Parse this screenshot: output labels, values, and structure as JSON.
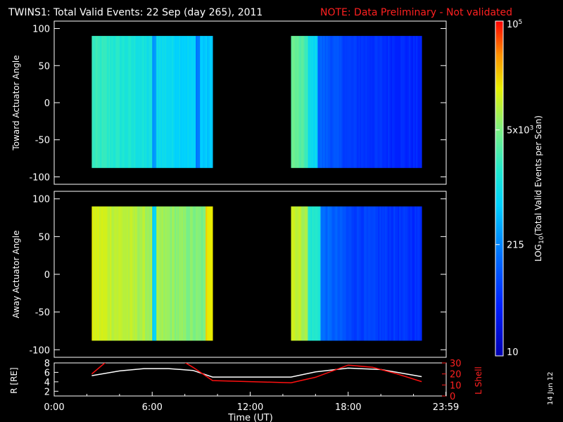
{
  "title": {
    "main": "TWINS1: Total Valid Events: 22 Sep (day 265), 2011",
    "note": "NOTE: Data Preliminary - Not validated",
    "note_color": "#ff2020"
  },
  "date_stamp": "14 Jun 12",
  "chart_data": [
    {
      "type": "heatmap",
      "name": "toward",
      "ylabel": "Toward Actuator Angle",
      "ylim": [
        -110,
        110
      ],
      "yticks": [
        100,
        50,
        0,
        -50,
        -100
      ],
      "ytick_labels": [
        "100",
        "50",
        "0",
        "-50",
        "-100"
      ],
      "xlim": [
        0,
        24
      ],
      "data_blocks": [
        {
          "t_start": 2.3,
          "t_end": 9.7,
          "angle_min": -88,
          "angle_max": 90
        },
        {
          "t_start": 14.5,
          "t_end": 22.5,
          "angle_min": -88,
          "angle_max": 90
        }
      ]
    },
    {
      "type": "heatmap",
      "name": "away",
      "ylabel": "Away Actuator Angle",
      "ylim": [
        -110,
        110
      ],
      "yticks": [
        100,
        50,
        0,
        -50,
        -100
      ],
      "ytick_labels": [
        "100",
        "50",
        "0",
        "-50",
        "-100"
      ],
      "xlim": [
        0,
        24
      ],
      "data_blocks": [
        {
          "t_start": 2.3,
          "t_end": 9.7,
          "angle_min": -88,
          "angle_max": 90
        },
        {
          "t_start": 14.5,
          "t_end": 22.5,
          "angle_min": -88,
          "angle_max": 90
        }
      ]
    },
    {
      "type": "line",
      "name": "orbit",
      "ylabel_left": "R [RE]",
      "ylabel_right": "L Shell",
      "left_ylim": [
        1,
        8
      ],
      "left_yticks": [
        "2",
        "4",
        "6",
        "8"
      ],
      "right_ylim": [
        0,
        30
      ],
      "right_yticks": [
        "0",
        "10",
        "20",
        "30"
      ],
      "xlabel": "Time (UT)",
      "xlim": [
        0,
        24
      ],
      "xtick_labels": [
        "0:00",
        "6:00",
        "12:00",
        "18:00",
        "23:59"
      ],
      "series": [
        {
          "color": "#ffffff",
          "axis": "left",
          "x": [
            2.3,
            4,
            5.5,
            7,
            8.5,
            9.7,
            12,
            14.5,
            16,
            18,
            20,
            22.5
          ],
          "y": [
            5.3,
            6.3,
            6.8,
            6.8,
            6.4,
            5.0,
            5.0,
            5.0,
            6.1,
            6.9,
            6.6,
            5.1
          ]
        },
        {
          "color": "#ff1010",
          "axis": "right",
          "x": [
            2.3,
            3.5,
            7.5,
            8.5,
            9.7,
            12,
            14.5,
            16,
            18,
            19.5,
            21,
            22.5
          ],
          "y": [
            20,
            35,
            35,
            26,
            14,
            13,
            12,
            17,
            28,
            26,
            20,
            13
          ]
        }
      ]
    }
  ],
  "colorbar": {
    "label": "LOG10(Total Valid Events per Scan)",
    "label_main": "LOG",
    "label_sub": "10",
    "label_rest": "(Total Valid Events per Scan)",
    "ticks": [
      "10",
      "215",
      "5x10",
      "10"
    ],
    "tick_sup": [
      "",
      "",
      "3",
      "5"
    ],
    "log_range": [
      1,
      5
    ],
    "tick_values": [
      1,
      2.33,
      3.7,
      5
    ]
  }
}
